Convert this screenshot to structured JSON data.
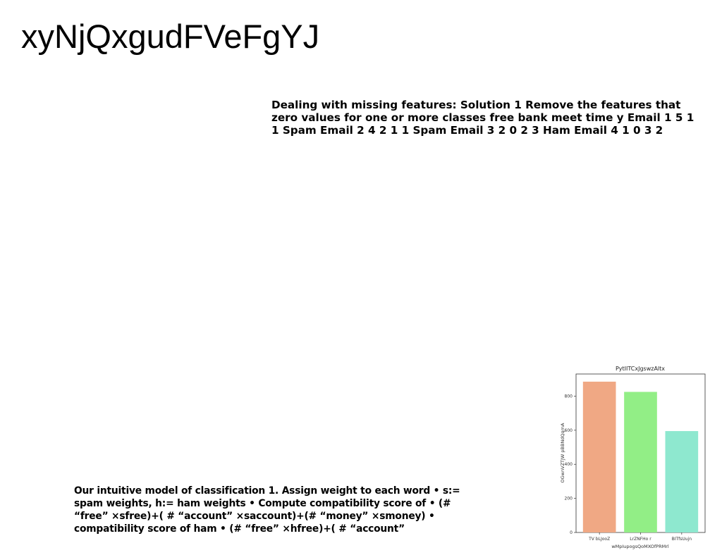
{
  "page": {
    "title": "xyNjQxgudFVeFgYJ"
  },
  "blocks": {
    "missing_features": "Dealing with missing features: Solution 1 Remove the features that zero values for one or more classes free bank meet time y Email 1 5 1 1 Spam Email 2 4 2 1 1 Spam Email 3 2 0 2 3 Ham Email 4 1 0 3 2",
    "intuitive_model": "Our intuitive model of classification 1. Assign weight to each word • s:= spam weights, h:= ham weights • Compute compatibility score of • (# “free” ×sfree)+( # “account” ×saccount)+(# “money” ×smoney) • compatibility score of ham • (# “free” ×hfree)+( # “account”"
  },
  "chart_data": {
    "type": "bar",
    "title": "PytIITCxJgswzAltx",
    "xlabel": "wMpIupogsQoMXOfPRMrl",
    "ylabel": "OGwnVZTJW pBBNdQqmA",
    "categories": [
      "TV bLJooZ",
      "LrZNFHo r",
      "BITfsUujn"
    ],
    "values": [
      885,
      825,
      595
    ],
    "colors": [
      "#f0a884",
      "#92ee86",
      "#8ee8cf"
    ],
    "ylim": [
      0,
      930
    ],
    "yticks": [
      0,
      200,
      400,
      600,
      800
    ],
    "grid": false
  }
}
